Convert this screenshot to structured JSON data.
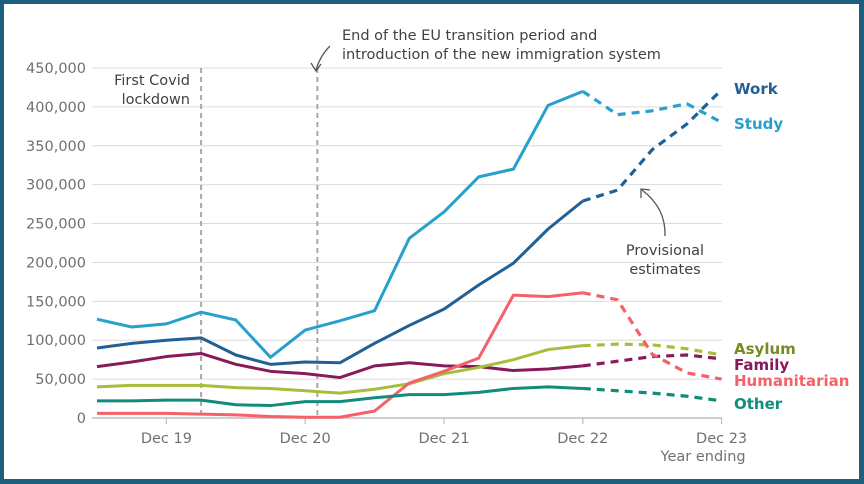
{
  "chart_data": {
    "type": "line",
    "title": "",
    "xlabel": "Year ending",
    "ylabel": "",
    "ylim": [
      0,
      450000
    ],
    "yticks": [
      0,
      50000,
      100000,
      150000,
      200000,
      250000,
      300000,
      350000,
      400000,
      450000
    ],
    "ytick_labels": [
      "0",
      "50,000",
      "100,000",
      "150,000",
      "200,000",
      "250,000",
      "300,000",
      "350,000",
      "400,000",
      "450,000"
    ],
    "grid": true,
    "x": [
      "Jun 19",
      "Sep 19",
      "Dec 19",
      "Mar 20",
      "Jun 20",
      "Sep 20",
      "Dec 20",
      "Mar 21",
      "Jun 21",
      "Sep 21",
      "Dec 21",
      "Mar 22",
      "Jun 22",
      "Sep 22",
      "Dec 22",
      "Mar 23",
      "Jun 23",
      "Sep 23",
      "Dec 23"
    ],
    "xtick_labels": [
      "Dec 19",
      "Dec 20",
      "Dec 21",
      "Dec 22",
      "Dec 23"
    ],
    "xtick_indices": [
      2,
      6,
      10,
      14,
      18
    ],
    "provisional_from_index": 14,
    "series": [
      {
        "name": "Study",
        "color": "#27a0cc",
        "values": [
          127000,
          117000,
          121000,
          136000,
          126000,
          78000,
          113000,
          125000,
          138000,
          231000,
          265000,
          310000,
          320000,
          402000,
          420000,
          390000,
          395000,
          404000,
          380000
        ]
      },
      {
        "name": "Work",
        "color": "#206095",
        "values": [
          90000,
          96000,
          100000,
          103000,
          81000,
          69000,
          72000,
          71000,
          96000,
          119000,
          140000,
          171000,
          199000,
          243000,
          279000,
          293000,
          345000,
          378000,
          422000
        ]
      },
      {
        "name": "Family",
        "color": "#871a5b",
        "values": [
          66000,
          72000,
          79000,
          83000,
          69000,
          60000,
          57000,
          52000,
          67000,
          71000,
          67000,
          66000,
          61000,
          63000,
          67000,
          73000,
          79000,
          81000,
          76000
        ]
      },
      {
        "name": "Asylum",
        "color": "#a8bd3a",
        "values": [
          40000,
          42000,
          42000,
          42000,
          39000,
          38000,
          35000,
          32000,
          37000,
          44000,
          57000,
          65000,
          75000,
          88000,
          93000,
          95000,
          94000,
          89000,
          81000
        ]
      },
      {
        "name": "Humanitarian",
        "color": "#f66068",
        "values": [
          6000,
          6000,
          6000,
          5000,
          4000,
          2000,
          1000,
          1000,
          9000,
          45000,
          60000,
          77000,
          158000,
          156000,
          161000,
          152000,
          82000,
          58000,
          50000
        ]
      },
      {
        "name": "Other",
        "color": "#118c7b",
        "values": [
          22000,
          22000,
          23000,
          23000,
          17000,
          16000,
          21000,
          21000,
          26000,
          30000,
          30000,
          33000,
          38000,
          40000,
          38000,
          35000,
          32000,
          28000,
          22000
        ]
      }
    ],
    "legend_labels": [
      {
        "name": "Work",
        "color": "#206095"
      },
      {
        "name": "Study",
        "color": "#27a0cc"
      },
      {
        "name": "Asylum",
        "color": "#7a8a22"
      },
      {
        "name": "Family",
        "color": "#871a5b"
      },
      {
        "name": "Humanitarian",
        "color": "#f66068"
      },
      {
        "name": "Other",
        "color": "#118c7b"
      }
    ],
    "annotations": {
      "covid": {
        "lines": [
          "First Covid",
          "lockdown"
        ],
        "x_index": 3
      },
      "eu": {
        "lines": [
          "End of the EU transition period and",
          "introduction of the new immigration system"
        ],
        "x_index": 6.35
      },
      "provisional": {
        "lines": [
          "Provisional",
          "estimates"
        ]
      }
    },
    "legend": "right-end-labels"
  }
}
